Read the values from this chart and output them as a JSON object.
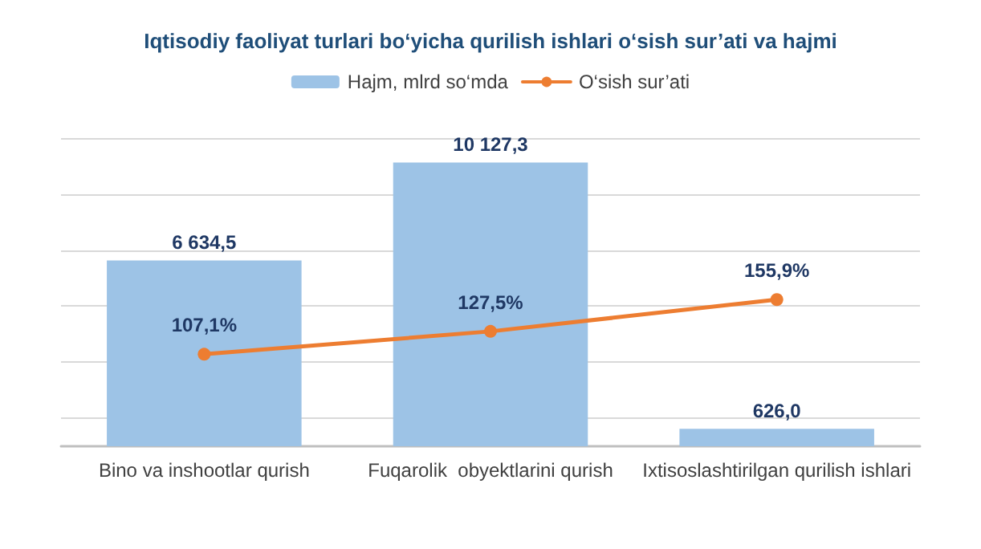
{
  "chart_data": {
    "type": "bar",
    "title": "Iqtisodiy faoliyat turlari bo‘yicha qurilish ishlari o‘sish sur’ati va hajmi",
    "categories": [
      "Bino va inshootlar qurish",
      "Fuqarolik  obyektlarini qurish",
      "Ixtisoslashtirilgan qurilish ishlari"
    ],
    "series": [
      {
        "name": "Hajm, mlrd so‘mda",
        "color": "#9dc3e6",
        "values": [
          6634.5,
          10127.3,
          626.0
        ],
        "value_labels": [
          "6 634,5",
          "10 127,3",
          "626,0"
        ]
      },
      {
        "name": "O‘sish sur’ati",
        "type": "line",
        "axis": "y2",
        "color": "#ed7d31",
        "values": [
          107.1,
          127.5,
          155.9
        ],
        "value_labels": [
          "107,1%",
          "127,5%",
          "155,9%"
        ]
      }
    ],
    "ylim": [
      0,
      11000
    ],
    "yticks": [
      {
        "value": 1000,
        "label": null
      },
      {
        "value": 3000,
        "label": null
      },
      {
        "value": 5000,
        "label": null
      },
      {
        "value": 7000,
        "label": null
      },
      {
        "value": 9000,
        "label": null
      },
      {
        "value": 11000,
        "label": null
      }
    ],
    "y2lim": [
      25,
      300
    ],
    "grid": "y",
    "legend": "top",
    "marker": "circle",
    "line_style": "solid",
    "tick_labels": "x"
  }
}
